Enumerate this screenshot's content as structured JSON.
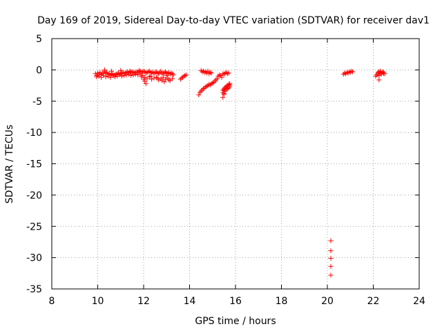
{
  "chart_data": {
    "type": "scatter",
    "title": "Day 169 of 2019, Sidereal Day-to-day VTEC variation (SDTVAR) for receiver dav1",
    "xlabel": "GPS time / hours",
    "ylabel": "SDTVAR / TECUs",
    "xlim": [
      8,
      24
    ],
    "ylim": [
      -35,
      5
    ],
    "x_ticks": [
      8,
      10,
      12,
      14,
      16,
      18,
      20,
      22,
      24
    ],
    "y_ticks": [
      5,
      0,
      -5,
      -10,
      -15,
      -20,
      -25,
      -30,
      -35
    ],
    "grid": true,
    "marker": "+",
    "color": "#ff0000",
    "series": [
      {
        "name": "SDTVAR",
        "x": [
          9.9,
          9.95,
          10.0,
          10.05,
          10.1,
          10.15,
          10.2,
          10.25,
          10.3,
          10.35,
          10.4,
          10.45,
          10.5,
          10.55,
          10.6,
          10.65,
          10.7,
          10.75,
          10.8,
          10.85,
          10.9,
          10.95,
          11.0,
          11.05,
          11.1,
          11.15,
          11.2,
          11.25,
          11.3,
          11.35,
          11.4,
          11.45,
          11.5,
          11.55,
          11.6,
          11.65,
          11.7,
          11.75,
          11.8,
          11.85,
          11.9,
          11.95,
          12.0,
          12.05,
          12.1,
          12.15,
          12.2,
          12.25,
          12.3,
          12.35,
          12.4,
          12.45,
          12.5,
          12.55,
          12.6,
          12.65,
          12.7,
          12.75,
          12.8,
          12.85,
          12.9,
          12.95,
          13.0,
          13.05,
          13.1,
          13.15,
          13.2,
          13.25,
          13.3,
          9.95,
          10.05,
          10.15,
          10.25,
          10.35,
          10.45,
          10.55,
          10.65,
          10.75,
          10.85,
          10.95,
          11.05,
          11.15,
          11.25,
          11.35,
          11.45,
          11.55,
          11.65,
          11.75,
          11.85,
          11.95,
          12.05,
          12.15,
          12.25,
          12.35,
          12.45,
          12.55,
          12.65,
          12.75,
          12.85,
          12.95,
          13.05,
          13.15,
          13.25,
          10.3,
          10.6,
          11.0,
          11.4,
          11.8,
          12.0,
          12.05,
          12.1,
          12.6,
          12.9,
          13.0,
          13.1,
          12.3,
          11.9,
          12.8,
          13.6,
          13.65,
          13.7,
          13.75,
          13.8,
          13.85,
          14.5,
          14.55,
          14.6,
          14.65,
          14.7,
          14.75,
          14.8,
          14.85,
          14.9,
          14.95,
          14.4,
          14.45,
          14.5,
          14.55,
          14.6,
          14.65,
          14.7,
          14.75,
          14.8,
          14.85,
          14.9,
          14.95,
          15.0,
          15.05,
          15.1,
          15.15,
          15.2,
          15.25,
          15.3,
          15.35,
          15.4,
          15.45,
          15.5,
          15.55,
          15.6,
          15.65,
          15.7,
          15.45,
          15.5,
          15.55,
          15.6,
          15.65,
          15.7,
          15.75,
          15.45,
          15.5,
          15.55,
          15.6,
          15.65,
          15.7,
          15.75,
          15.45,
          15.5,
          15.55,
          15.6,
          15.65,
          15.7,
          15.75,
          15.5,
          20.15,
          20.15,
          20.15,
          20.15,
          20.15,
          20.7,
          20.75,
          20.8,
          20.85,
          20.9,
          20.95,
          21.0,
          21.05,
          21.1,
          22.1,
          22.15,
          22.2,
          22.25,
          22.3,
          22.35,
          22.4,
          22.45,
          22.2,
          22.25,
          22.3,
          22.35,
          22.4,
          22.45,
          22.5,
          22.25
        ],
        "y": [
          -0.6,
          -0.9,
          -0.5,
          -0.7,
          -0.4,
          -0.8,
          -0.5,
          -0.6,
          -0.2,
          -0.4,
          -0.5,
          -0.7,
          -0.6,
          -0.8,
          -0.7,
          -0.6,
          -0.9,
          -0.8,
          -0.7,
          -0.6,
          -0.5,
          -0.7,
          -0.6,
          -0.5,
          -0.4,
          -0.6,
          -0.5,
          -0.4,
          -0.3,
          -0.5,
          -0.4,
          -0.3,
          -0.4,
          -0.3,
          -0.5,
          -0.4,
          -0.3,
          -0.4,
          -0.3,
          -0.2,
          -0.4,
          -0.3,
          -0.2,
          -0.3,
          -0.5,
          -0.4,
          -0.3,
          -0.2,
          -0.4,
          -0.5,
          -0.3,
          -0.6,
          -0.4,
          -0.3,
          -0.5,
          -0.6,
          -0.4,
          -0.2,
          -0.5,
          -0.7,
          -0.4,
          -0.3,
          -0.5,
          -0.6,
          -0.4,
          -0.7,
          -0.5,
          -0.6,
          -0.8,
          -1.1,
          -1.0,
          -1.2,
          -0.9,
          -1.1,
          -1.0,
          -1.2,
          -0.9,
          -1.1,
          -1.0,
          -0.8,
          -1.0,
          -0.9,
          -0.8,
          -0.7,
          -0.9,
          -0.8,
          -0.7,
          -0.8,
          -0.6,
          -0.9,
          -1.2,
          -1.4,
          -1.1,
          -1.5,
          -1.3,
          -1.2,
          -1.6,
          -1.4,
          -1.2,
          -1.5,
          -1.3,
          -1.7,
          -1.4,
          0.0,
          -0.2,
          -0.1,
          -0.2,
          -0.1,
          -1.5,
          -1.8,
          -2.2,
          -1.3,
          -1.9,
          -0.9,
          -1.6,
          -1.0,
          -1.1,
          -1.7,
          -1.5,
          -1.3,
          -1.2,
          -1.0,
          -0.9,
          -0.8,
          -0.1,
          -0.3,
          -0.2,
          -0.4,
          -0.3,
          -0.5,
          -0.2,
          -0.6,
          -0.4,
          -0.5,
          -4.0,
          -3.6,
          -3.4,
          -3.2,
          -3.0,
          -2.9,
          -2.7,
          -2.6,
          -2.5,
          -2.3,
          -2.4,
          -2.2,
          -2.1,
          -2.0,
          -1.8,
          -1.6,
          -1.4,
          -1.0,
          -0.8,
          -0.9,
          -1.2,
          -0.6,
          -0.7,
          -0.5,
          -0.4,
          -0.6,
          -0.5,
          -4.4,
          -3.8,
          -3.4,
          -3.1,
          -3.0,
          -2.9,
          -2.7,
          -3.2,
          -3.0,
          -2.8,
          -2.6,
          -2.5,
          -2.3,
          -2.2,
          -3.6,
          -3.3,
          -3.1,
          -2.9,
          -2.7,
          -2.5,
          -2.4,
          -3.9,
          -27.3,
          -28.9,
          -30.1,
          -31.4,
          -32.8,
          -0.7,
          -0.5,
          -0.6,
          -0.4,
          -0.5,
          -0.3,
          -0.4,
          -0.2,
          -0.3,
          -1.0,
          -0.8,
          -0.6,
          -0.9,
          -0.5,
          -0.7,
          -0.4,
          -0.6,
          -0.4,
          -0.3,
          -0.2,
          -0.5,
          -0.3,
          -0.4,
          -0.6,
          -1.6
        ]
      }
    ]
  }
}
